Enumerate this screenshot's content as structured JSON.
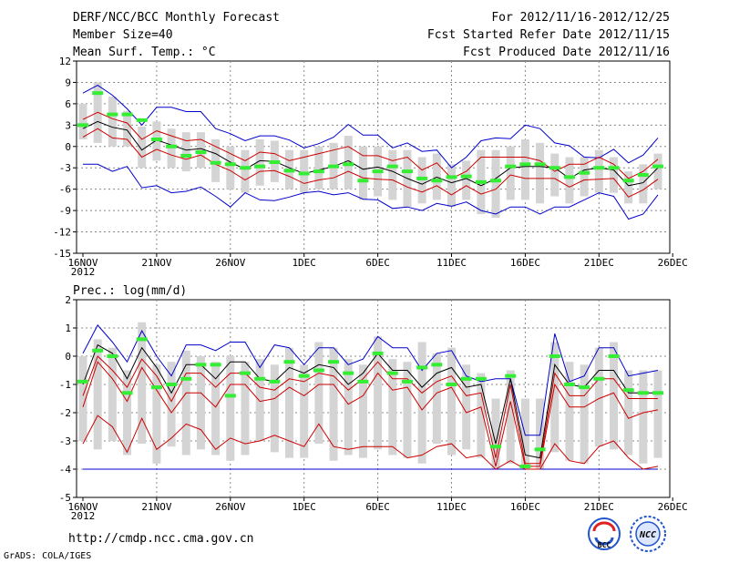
{
  "header": {
    "title": "DERF/NCC/BCC Monthly Forecast",
    "member_size": "Member Size=40",
    "variable": "Mean Surf. Temp.: °C",
    "forecast_period": "For 2012/11/16-2012/12/25",
    "fcst_started": "Fcst Started Refer Date 2012/11/15",
    "fcst_produced": "Fcst Produced Date 2012/11/16"
  },
  "footer": {
    "url": "http://cmdp.ncc.cma.gov.cn",
    "grads": "GrADS: COLA/IGES",
    "logo_bcc_text": "BCC",
    "logo_ncc_text": "NCC"
  },
  "colors": {
    "envelope": "#0000cc",
    "spread": "#cc0000",
    "mean": "#000000",
    "median": "#33ee33",
    "box": "#d4d4d4",
    "grid": "#888888"
  },
  "x_tick_labels": [
    "16NOV",
    "21NOV",
    "26NOV",
    "1DEC",
    "6DEC",
    "11DEC",
    "16DEC",
    "21DEC",
    "26DEC"
  ],
  "x_year_label": "2012",
  "chart_data": [
    {
      "type": "line",
      "title": "Mean Surf. Temp.: °C",
      "ylabel": "°C",
      "ylim": [
        -15,
        12
      ],
      "yticks": [
        12,
        9,
        6,
        3,
        0,
        -3,
        -6,
        -9,
        -12,
        -15
      ],
      "x": [
        1,
        2,
        3,
        4,
        5,
        6,
        7,
        8,
        9,
        10,
        11,
        12,
        13,
        14,
        15,
        16,
        17,
        18,
        19,
        20,
        21,
        22,
        23,
        24,
        25,
        26,
        27,
        28,
        29,
        30,
        31,
        32,
        33,
        34,
        35,
        36,
        37,
        38,
        39,
        40
      ],
      "series": [
        {
          "name": "max",
          "values": [
            7.5,
            8.6,
            7.2,
            5.3,
            3.0,
            5.5,
            5.5,
            4.9,
            4.9,
            2.5,
            1.8,
            0.8,
            1.5,
            1.5,
            0.9,
            -0.2,
            0.4,
            1.3,
            3.1,
            1.6,
            1.6,
            -0.2,
            0.5,
            -0.7,
            -0.5,
            -3.0,
            -1.5,
            0.8,
            1.2,
            1.1,
            3.0,
            2.5,
            0.5,
            0.1,
            -1.5,
            -1.6,
            -0.4,
            -2.3,
            -1.2,
            1.2
          ]
        },
        {
          "name": "upper",
          "values": [
            3.8,
            4.8,
            3.9,
            3.3,
            1.0,
            2.2,
            1.5,
            0.8,
            1.0,
            0.0,
            -1.0,
            -2.0,
            -0.8,
            -1.0,
            -2.0,
            -1.5,
            -1.0,
            -0.5,
            0.0,
            -1.3,
            -1.3,
            -2.0,
            -1.5,
            -3.3,
            -2.3,
            -4.5,
            -3.5,
            -1.5,
            -1.5,
            -1.5,
            -1.5,
            -2.0,
            -3.5,
            -2.5,
            -2.5,
            -1.5,
            -2.5,
            -4.5,
            -3.5,
            -1.8
          ]
        },
        {
          "name": "mean",
          "values": [
            2.5,
            3.5,
            2.7,
            2.3,
            -0.5,
            0.9,
            0.2,
            -0.5,
            -0.3,
            -1.0,
            -2.2,
            -3.2,
            -2.0,
            -2.1,
            -3.0,
            -3.8,
            -3.3,
            -2.8,
            -2.0,
            -3.2,
            -2.9,
            -3.5,
            -4.5,
            -5.3,
            -4.3,
            -5.1,
            -4.5,
            -5.5,
            -4.5,
            -3.0,
            -2.8,
            -2.8,
            -3.0,
            -4.5,
            -3.3,
            -3.0,
            -3.3,
            -5.5,
            -5.1,
            -3.0
          ]
        },
        {
          "name": "lower",
          "values": [
            1.3,
            2.5,
            1.2,
            1.0,
            -1.5,
            -0.4,
            -1.2,
            -1.8,
            -1.2,
            -2.5,
            -3.4,
            -4.7,
            -3.5,
            -3.4,
            -4.2,
            -5.2,
            -4.7,
            -4.4,
            -3.5,
            -4.4,
            -4.6,
            -4.7,
            -5.7,
            -6.4,
            -5.5,
            -6.8,
            -5.5,
            -6.7,
            -6.0,
            -4.0,
            -4.5,
            -4.5,
            -4.5,
            -5.7,
            -4.7,
            -4.6,
            -4.5,
            -7.1,
            -6.1,
            -4.6
          ]
        },
        {
          "name": "min",
          "values": [
            -2.5,
            -2.5,
            -3.5,
            -2.8,
            -5.8,
            -5.5,
            -6.5,
            -6.3,
            -5.7,
            -7.0,
            -8.5,
            -6.5,
            -7.5,
            -7.6,
            -7.1,
            -6.5,
            -6.3,
            -6.8,
            -6.5,
            -7.4,
            -7.5,
            -8.7,
            -8.5,
            -9.0,
            -8.0,
            -8.4,
            -7.8,
            -9.0,
            -9.5,
            -8.5,
            -8.5,
            -9.5,
            -8.5,
            -8.5,
            -7.5,
            -6.5,
            -7.0,
            -10.2,
            -9.5,
            -6.8
          ]
        },
        {
          "name": "median",
          "values": [
            3.0,
            7.5,
            4.5,
            4.5,
            3.7,
            1.0,
            0.0,
            -1.3,
            -0.8,
            -2.3,
            -2.5,
            -3.0,
            -2.8,
            -2.2,
            -3.4,
            -3.8,
            -3.5,
            -2.8,
            -2.5,
            -4.8,
            -3.5,
            -2.8,
            -3.5,
            -4.5,
            -4.8,
            -4.3,
            -4.2,
            -5.0,
            -4.8,
            -2.8,
            -2.5,
            -2.5,
            -3.0,
            -4.3,
            -3.7,
            -3.0,
            -3.0,
            -4.8,
            -4.0,
            -2.8
          ]
        },
        {
          "name": "box_high",
          "values": [
            6.0,
            9.0,
            7.0,
            5.0,
            2.8,
            3.5,
            2.5,
            2.0,
            2.0,
            1.0,
            0.0,
            -0.5,
            1.0,
            0.8,
            -0.5,
            -0.5,
            0.0,
            0.5,
            1.5,
            0.0,
            0.0,
            -0.5,
            -0.5,
            -1.5,
            -1.0,
            -2.5,
            -2.0,
            -0.5,
            -0.5,
            0.0,
            1.0,
            0.5,
            -1.0,
            -1.5,
            -1.5,
            -0.5,
            -1.5,
            -3.5,
            -2.5,
            -1.0
          ]
        },
        {
          "name": "box_low",
          "values": [
            1.0,
            0.5,
            0.0,
            0.0,
            -3.0,
            -2.0,
            -3.0,
            -3.5,
            -3.0,
            -5.0,
            -6.0,
            -6.5,
            -5.5,
            -5.0,
            -6.0,
            -6.5,
            -6.0,
            -6.0,
            -6.0,
            -7.5,
            -7.0,
            -7.5,
            -8.5,
            -8.0,
            -7.5,
            -8.5,
            -7.5,
            -9.5,
            -10.0,
            -7.5,
            -7.5,
            -8.0,
            -7.0,
            -8.0,
            -7.0,
            -6.5,
            -6.5,
            -8.0,
            -8.0,
            -6.0
          ]
        }
      ]
    },
    {
      "type": "line",
      "title": "Prec.: log(mm/d)",
      "ylabel": "log(mm/d)",
      "ylim": [
        -5,
        2
      ],
      "yticks": [
        2,
        1,
        0,
        -1,
        -2,
        -3,
        -4,
        -5
      ],
      "x": [
        1,
        2,
        3,
        4,
        5,
        6,
        7,
        8,
        9,
        10,
        11,
        12,
        13,
        14,
        15,
        16,
        17,
        18,
        19,
        20,
        21,
        22,
        23,
        24,
        25,
        26,
        27,
        28,
        29,
        30,
        31,
        32,
        33,
        34,
        35,
        36,
        37,
        38,
        39,
        40
      ],
      "series": [
        {
          "name": "max",
          "values": [
            0.1,
            1.1,
            0.5,
            -0.2,
            0.9,
            0.0,
            -0.7,
            0.4,
            0.4,
            0.2,
            0.5,
            0.5,
            -0.4,
            0.4,
            0.3,
            -0.3,
            0.3,
            0.3,
            -0.3,
            -0.1,
            0.7,
            0.3,
            0.3,
            -0.5,
            0.1,
            0.2,
            -0.7,
            -0.9,
            -0.8,
            -0.8,
            -2.8,
            -2.8,
            0.8,
            -0.9,
            -0.7,
            0.3,
            0.3,
            -0.7,
            -0.6,
            -0.5
          ]
        },
        {
          "name": "mean",
          "values": [
            -1.0,
            0.4,
            0.1,
            -0.8,
            0.3,
            -0.4,
            -1.3,
            -0.3,
            -0.3,
            -0.8,
            -0.2,
            -0.2,
            -0.8,
            -0.9,
            -0.4,
            -0.6,
            -0.3,
            -0.4,
            -1.0,
            -0.6,
            0.1,
            -0.5,
            -0.5,
            -1.1,
            -0.6,
            -0.4,
            -1.1,
            -1.0,
            -3.1,
            -0.8,
            -3.5,
            -3.6,
            -0.3,
            -1.0,
            -1.1,
            -0.5,
            -0.5,
            -1.3,
            -1.3,
            -1.3
          ]
        },
        {
          "name": "upper",
          "values": [
            -1.4,
            0.0,
            -0.5,
            -1.1,
            -0.1,
            -0.7,
            -1.6,
            -0.6,
            -0.6,
            -1.1,
            -0.6,
            -0.6,
            -1.1,
            -1.2,
            -0.8,
            -0.9,
            -0.6,
            -0.7,
            -1.2,
            -0.8,
            -0.2,
            -0.8,
            -0.8,
            -1.3,
            -0.9,
            -0.7,
            -1.4,
            -1.3,
            -3.6,
            -1.0,
            -3.8,
            -3.8,
            -0.6,
            -1.4,
            -1.4,
            -0.8,
            -0.8,
            -1.5,
            -1.5,
            -1.5
          ]
        },
        {
          "name": "lower",
          "values": [
            -1.8,
            -0.2,
            -0.8,
            -1.6,
            -0.4,
            -1.2,
            -2.0,
            -1.3,
            -1.3,
            -1.8,
            -1.0,
            -1.0,
            -1.6,
            -1.5,
            -1.1,
            -1.4,
            -1.0,
            -1.0,
            -1.7,
            -1.4,
            -0.6,
            -1.2,
            -1.1,
            -1.9,
            -1.3,
            -1.1,
            -2.0,
            -1.8,
            -3.9,
            -1.6,
            -3.9,
            -3.9,
            -1.0,
            -1.8,
            -1.8,
            -1.5,
            -1.3,
            -2.2,
            -2.0,
            -1.9
          ]
        },
        {
          "name": "low",
          "values": [
            -3.1,
            -2.1,
            -2.5,
            -3.4,
            -2.2,
            -3.3,
            -2.9,
            -2.4,
            -2.6,
            -3.3,
            -2.9,
            -3.1,
            -3.0,
            -2.8,
            -3.0,
            -3.2,
            -2.4,
            -3.2,
            -3.3,
            -3.2,
            -3.2,
            -3.2,
            -3.6,
            -3.5,
            -3.2,
            -3.1,
            -3.6,
            -3.5,
            -4.0,
            -3.7,
            -4.0,
            -4.0,
            -3.1,
            -3.7,
            -3.8,
            -3.2,
            -3.0,
            -3.6,
            -4.0,
            -3.9
          ]
        },
        {
          "name": "min",
          "values": [
            -4.0,
            -4.0,
            -4.0,
            -4.0,
            -4.0,
            -4.0,
            -4.0,
            -4.0,
            -4.0,
            -4.0,
            -4.0,
            -4.0,
            -4.0,
            -4.0,
            -4.0,
            -4.0,
            -4.0,
            -4.0,
            -4.0,
            -4.0,
            -4.0,
            -4.0,
            -4.0,
            -4.0,
            -4.0,
            -4.0,
            -4.0,
            -4.0,
            -4.0,
            -4.0,
            -4.0,
            -4.0,
            -4.0,
            -4.0,
            -4.0,
            -4.0,
            -4.0,
            -4.0,
            -4.0,
            -4.0
          ]
        },
        {
          "name": "median",
          "values": [
            -0.9,
            0.2,
            0.0,
            -1.3,
            0.6,
            -1.1,
            -1.0,
            -0.8,
            -0.3,
            -0.3,
            -1.4,
            -0.6,
            -0.8,
            -0.9,
            -0.2,
            -0.7,
            -0.5,
            -0.2,
            -0.6,
            -0.9,
            0.1,
            -0.6,
            -0.9,
            -0.4,
            -0.3,
            -1.0,
            -0.8,
            -0.8,
            -3.2,
            -0.7,
            -3.9,
            -3.3,
            0.0,
            -1.0,
            -1.1,
            -0.8,
            0.0,
            -1.2,
            -1.3,
            -1.3
          ]
        },
        {
          "name": "box_high",
          "values": [
            0.0,
            0.6,
            0.3,
            -0.5,
            1.2,
            -0.3,
            -0.2,
            0.2,
            0.0,
            -0.2,
            0.0,
            -0.2,
            -0.1,
            -0.3,
            0.3,
            -0.3,
            0.5,
            0.3,
            -0.1,
            -0.3,
            0.7,
            -0.1,
            -0.2,
            0.5,
            0.1,
            0.3,
            -0.3,
            -0.6,
            -1.5,
            -0.5,
            -1.5,
            -1.5,
            0.5,
            -0.2,
            -0.3,
            0.3,
            0.5,
            -0.5,
            -0.5,
            -0.5
          ]
        },
        {
          "name": "box_low",
          "values": [
            -3.0,
            -3.3,
            -3.0,
            -3.5,
            -3.1,
            -3.8,
            -3.2,
            -3.5,
            -3.3,
            -3.5,
            -3.7,
            -3.5,
            -3.0,
            -3.4,
            -3.6,
            -3.6,
            -3.1,
            -3.7,
            -3.5,
            -3.6,
            -3.3,
            -3.5,
            -3.6,
            -3.8,
            -3.1,
            -3.5,
            -3.3,
            -3.6,
            -4.0,
            -3.8,
            -4.0,
            -4.0,
            -3.4,
            -3.7,
            -3.8,
            -3.2,
            -3.3,
            -3.5,
            -3.8,
            -3.6
          ]
        }
      ]
    }
  ]
}
